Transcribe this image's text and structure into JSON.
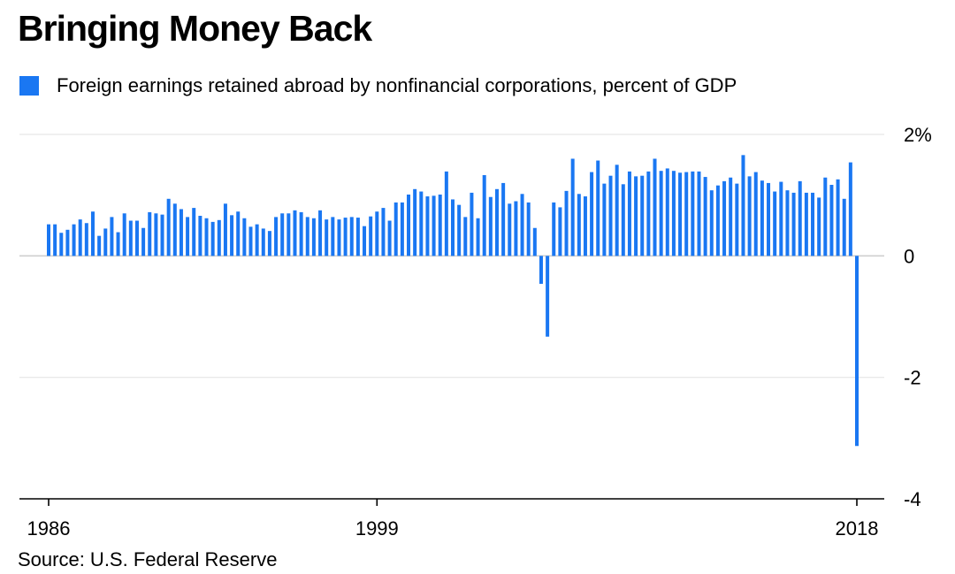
{
  "title": "Bringing Money Back",
  "legend": {
    "label": "Foreign earnings retained abroad by nonfinancial corporations, percent of GDP",
    "color": "#1a77f2"
  },
  "source": "Source: U.S. Federal Reserve",
  "chart_data": {
    "type": "bar",
    "title": "Bringing Money Back",
    "xlabel": "",
    "ylabel": "",
    "ylim": [
      -4,
      2
    ],
    "y_ticks": [
      2,
      0,
      -2,
      -4
    ],
    "y_tick_labels": [
      "2%",
      "0",
      "-2",
      "-4"
    ],
    "x_range": [
      1986,
      2018
    ],
    "x_ticks": [
      1986,
      1999,
      2018
    ],
    "x_tick_labels": [
      "1986",
      "1999",
      "2018"
    ],
    "frequency": "quarterly",
    "grid": true,
    "legend_position": "top-left",
    "series": [
      {
        "name": "Foreign earnings retained abroad by nonfinancial corporations, percent of GDP",
        "color": "#1a77f2",
        "x": [
          1986.0,
          1986.25,
          1986.5,
          1986.75,
          1987.0,
          1987.25,
          1987.5,
          1987.75,
          1988.0,
          1988.25,
          1988.5,
          1988.75,
          1989.0,
          1989.25,
          1989.5,
          1989.75,
          1990.0,
          1990.25,
          1990.5,
          1990.75,
          1991.0,
          1991.25,
          1991.5,
          1991.75,
          1992.0,
          1992.25,
          1992.5,
          1992.75,
          1993.0,
          1993.25,
          1993.5,
          1993.75,
          1994.0,
          1994.25,
          1994.5,
          1994.75,
          1995.0,
          1995.25,
          1995.5,
          1995.75,
          1996.0,
          1996.25,
          1996.5,
          1996.75,
          1997.0,
          1997.25,
          1997.5,
          1997.75,
          1998.0,
          1998.25,
          1998.5,
          1998.75,
          1999.0,
          1999.25,
          1999.5,
          1999.75,
          2000.0,
          2000.25,
          2000.5,
          2000.75,
          2001.0,
          2001.25,
          2001.5,
          2001.75,
          2002.0,
          2002.25,
          2002.5,
          2002.75,
          2003.0,
          2003.25,
          2003.5,
          2003.75,
          2004.0,
          2004.25,
          2004.5,
          2004.75,
          2005.0,
          2005.25,
          2005.5,
          2005.75,
          2006.0,
          2006.25,
          2006.5,
          2006.75,
          2007.0,
          2007.25,
          2007.5,
          2007.75,
          2008.0,
          2008.25,
          2008.5,
          2008.75,
          2009.0,
          2009.25,
          2009.5,
          2009.75,
          2010.0,
          2010.25,
          2010.5,
          2010.75,
          2011.0,
          2011.25,
          2011.5,
          2011.75,
          2012.0,
          2012.25,
          2012.5,
          2012.75,
          2013.0,
          2013.25,
          2013.5,
          2013.75,
          2014.0,
          2014.25,
          2014.5,
          2014.75,
          2015.0,
          2015.25,
          2015.5,
          2015.75,
          2016.0,
          2016.25,
          2016.5,
          2016.75,
          2017.0,
          2017.25,
          2017.5,
          2017.75,
          2018.0
        ],
        "values": [
          0.52,
          0.52,
          0.38,
          0.43,
          0.52,
          0.6,
          0.54,
          0.73,
          0.33,
          0.45,
          0.64,
          0.39,
          0.7,
          0.58,
          0.58,
          0.46,
          0.72,
          0.7,
          0.68,
          0.94,
          0.86,
          0.77,
          0.64,
          0.79,
          0.66,
          0.62,
          0.56,
          0.59,
          0.86,
          0.67,
          0.73,
          0.62,
          0.48,
          0.52,
          0.45,
          0.41,
          0.64,
          0.7,
          0.7,
          0.75,
          0.72,
          0.64,
          0.62,
          0.75,
          0.6,
          0.64,
          0.6,
          0.63,
          0.64,
          0.63,
          0.49,
          0.65,
          0.73,
          0.79,
          0.58,
          0.88,
          0.88,
          1.01,
          1.1,
          1.06,
          0.98,
          0.99,
          1.01,
          1.39,
          0.93,
          0.84,
          0.64,
          1.04,
          0.62,
          1.33,
          0.97,
          1.1,
          1.2,
          0.86,
          0.9,
          1.02,
          0.88,
          0.46,
          -0.46,
          -1.33,
          0.88,
          0.8,
          1.07,
          1.6,
          1.02,
          0.98,
          1.38,
          1.57,
          1.19,
          1.32,
          1.5,
          1.18,
          1.39,
          1.31,
          1.32,
          1.39,
          1.6,
          1.4,
          1.44,
          1.4,
          1.37,
          1.38,
          1.39,
          1.39,
          1.3,
          1.08,
          1.16,
          1.23,
          1.29,
          1.19,
          1.66,
          1.31,
          1.38,
          1.24,
          1.2,
          1.06,
          1.22,
          1.08,
          1.04,
          1.23,
          1.04,
          1.04,
          0.96,
          1.29,
          1.17,
          1.26,
          0.94,
          1.54,
          -3.13
        ]
      }
    ]
  }
}
